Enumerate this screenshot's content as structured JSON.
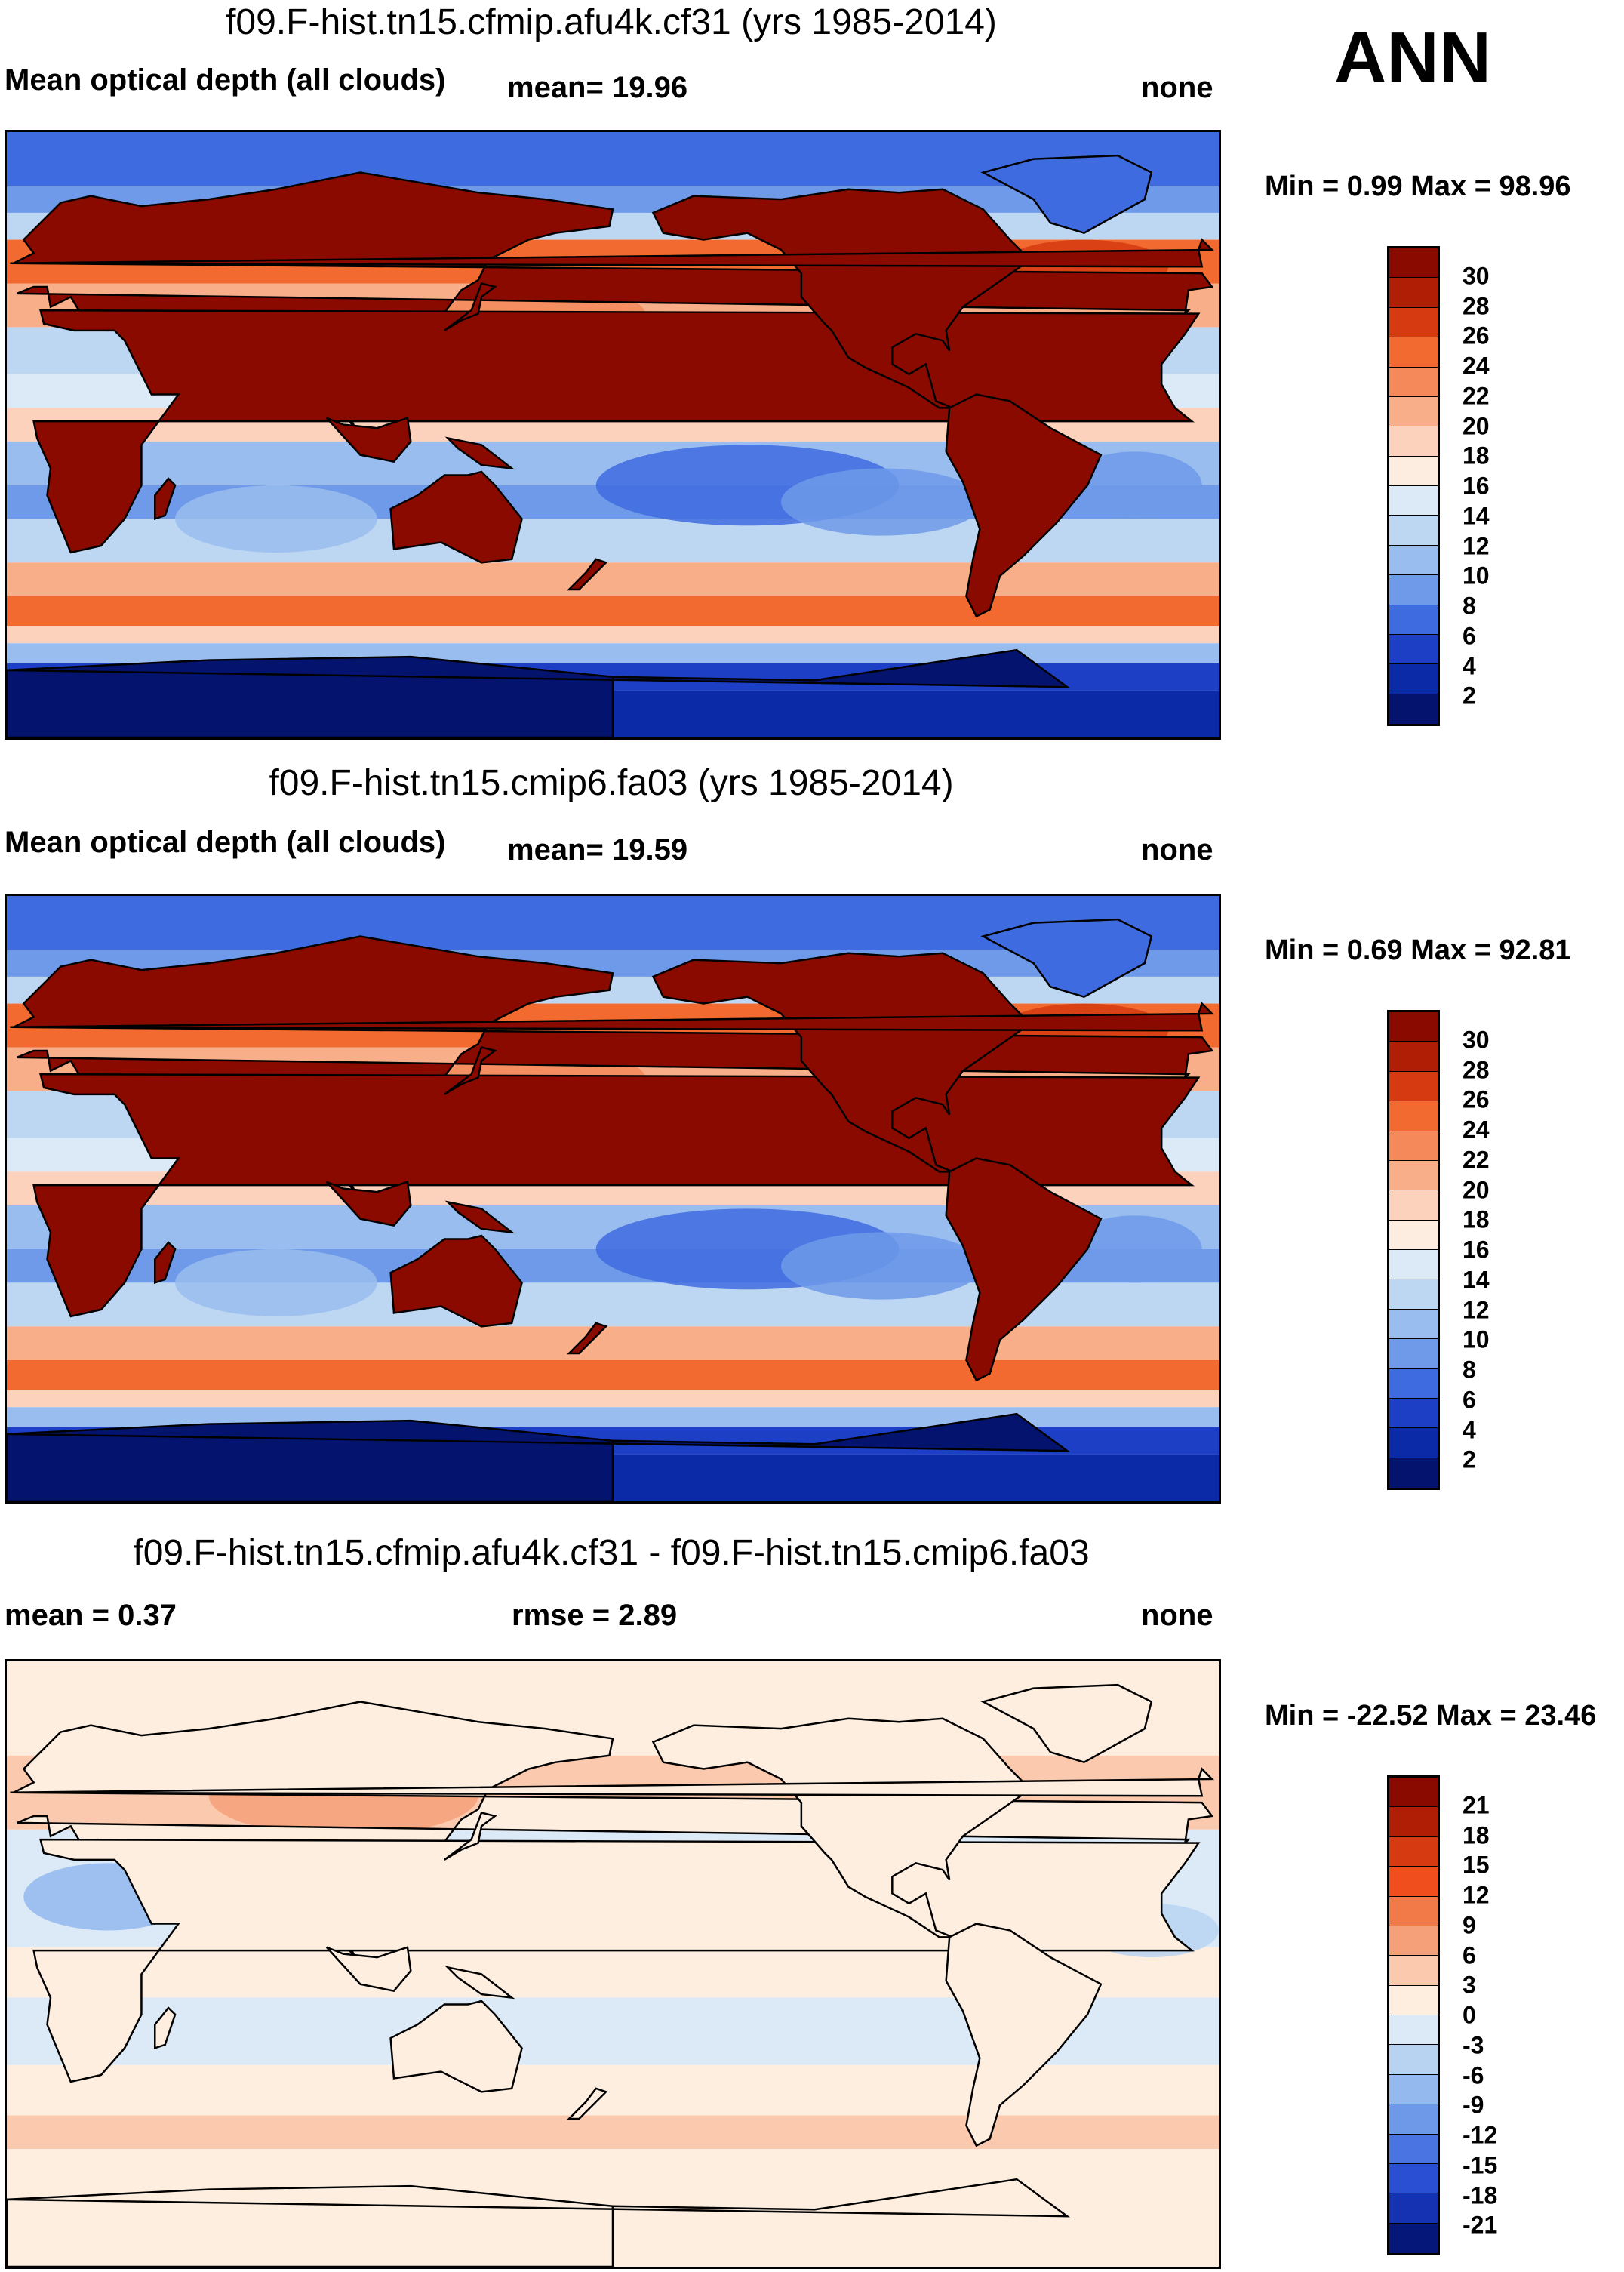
{
  "season": "ANN",
  "panels": [
    {
      "title": "f09.F-hist.tn15.cfmip.afu4k.cf31 (yrs 1985-2014)",
      "left_label": "Mean optical depth (all clouds)",
      "center_label": "mean=  19.96",
      "right_label": "none",
      "minmax": "Min =   0.99 Max =  98.96",
      "colorbar": {
        "ticks": [
          "30",
          "28",
          "26",
          "24",
          "22",
          "20",
          "18",
          "16",
          "14",
          "12",
          "10",
          "8",
          "6",
          "4",
          "2"
        ],
        "colors": [
          "#8b0a00",
          "#b01e06",
          "#d63a10",
          "#f26a2f",
          "#f5895a",
          "#f9ae8a",
          "#fcd2bd",
          "#fdece0",
          "#dce9f6",
          "#bdd6f2",
          "#99bdef",
          "#6f9ae9",
          "#3f6be0",
          "#1d3fc6",
          "#0b2aa8",
          "#04136e"
        ]
      },
      "map_scheme": "absolute",
      "north_outline_color": "#ffffff"
    },
    {
      "title": "f09.F-hist.tn15.cmip6.fa03 (yrs 1985-2014)",
      "left_label": "Mean optical depth (all clouds)",
      "center_label": "mean=  19.59",
      "right_label": "none",
      "minmax": "Min =   0.69 Max =  92.81",
      "colorbar": {
        "ticks": [
          "30",
          "28",
          "26",
          "24",
          "22",
          "20",
          "18",
          "16",
          "14",
          "12",
          "10",
          "8",
          "6",
          "4",
          "2"
        ],
        "colors": [
          "#8b0a00",
          "#b01e06",
          "#d63a10",
          "#f26a2f",
          "#f5895a",
          "#f9ae8a",
          "#fcd2bd",
          "#fdece0",
          "#dce9f6",
          "#bdd6f2",
          "#99bdef",
          "#6f9ae9",
          "#3f6be0",
          "#1d3fc6",
          "#0b2aa8",
          "#04136e"
        ]
      },
      "map_scheme": "absolute",
      "north_outline_color": "#ffffff"
    },
    {
      "title": "f09.F-hist.tn15.cfmip.afu4k.cf31 - f09.F-hist.tn15.cmip6.fa03",
      "left_label": "mean =   0.37",
      "center_label": "rmse =   2.89",
      "right_label": "none",
      "minmax": "Min = -22.52 Max =  23.46",
      "colorbar": {
        "ticks": [
          "21",
          "18",
          "15",
          "12",
          "9",
          "6",
          "3",
          "0",
          "-3",
          "-6",
          "-9",
          "-12",
          "-15",
          "-18",
          "-21"
        ],
        "colors": [
          "#8b0a00",
          "#b01e06",
          "#d63a10",
          "#f04e1d",
          "#f27a48",
          "#f6a07a",
          "#fbc9ad",
          "#fdeee0",
          "#dce9f6",
          "#b8d3f2",
          "#93b9ee",
          "#6e98e8",
          "#4a74e2",
          "#2a4fd2",
          "#1532b2",
          "#05187a"
        ]
      },
      "map_scheme": "difference",
      "north_outline_color": "#ffffff"
    }
  ]
}
